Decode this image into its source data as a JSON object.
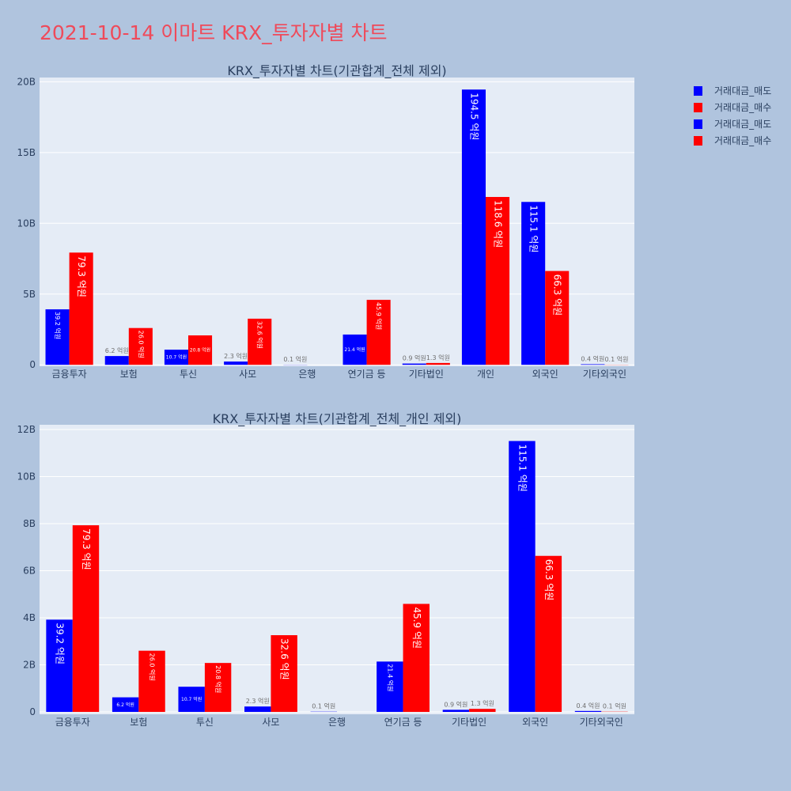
{
  "page_title": "2021-10-14 이마트 KRX_투자자별 차트",
  "colors": {
    "sell": "#0000ff",
    "buy": "#ff0000",
    "plot_bg": "#e5ecf6",
    "page_bg": "#b0c4de"
  },
  "legend": [
    "거래대금_매도",
    "거래대금_매수",
    "거래대금_매도",
    "거래대금_매수"
  ],
  "chart_data": [
    {
      "type": "bar",
      "title": "KRX_투자자별 차트(기관합계_전체 제외)",
      "categories": [
        "금융투자",
        "보험",
        "투신",
        "사모",
        "은행",
        "연기금 등",
        "기타법인",
        "개인",
        "외국인",
        "기타외국인"
      ],
      "series": [
        {
          "name": "거래대금_매도",
          "values": [
            3.92,
            0.62,
            1.07,
            0.23,
            0.01,
            2.14,
            0.09,
            19.45,
            11.51,
            0.04
          ],
          "labels": [
            "39.2 억원",
            "6.2 억원",
            "10.7 억원",
            "2.3 억원",
            "0.1 억원",
            "21.4 억원",
            "0.9 억원",
            "194.5 억원",
            "115.1 억원",
            "0.4 억원"
          ]
        },
        {
          "name": "거래대금_매수",
          "values": [
            7.93,
            2.6,
            2.08,
            3.26,
            0.0,
            4.59,
            0.13,
            11.86,
            6.63,
            0.01
          ],
          "labels": [
            "79.3 억원",
            "26.0 억원",
            "20.8 억원",
            "32.6 억원",
            "",
            "45.9 억원",
            "1.3 억원",
            "118.6 억원",
            "66.3 억원",
            "0.1 억원"
          ]
        }
      ],
      "yticks": [
        0,
        5,
        10,
        15,
        20
      ],
      "ytick_labels": [
        "0",
        "5B",
        "10B",
        "15B",
        "20B"
      ],
      "ylim": [
        -0.1,
        20.3
      ],
      "grid": true,
      "legend_position": "right"
    },
    {
      "type": "bar",
      "title": "KRX_투자자별 차트(기관합계_전체_개인 제외)",
      "categories": [
        "금융투자",
        "보험",
        "투신",
        "사모",
        "은행",
        "연기금 등",
        "기타법인",
        "외국인",
        "기타외국인"
      ],
      "series": [
        {
          "name": "거래대금_매도",
          "values": [
            3.92,
            0.62,
            1.07,
            0.23,
            0.01,
            2.14,
            0.09,
            11.51,
            0.04
          ],
          "labels": [
            "39.2 억원",
            "6.2 억원",
            "10.7 억원",
            "2.3 억원",
            "0.1 억원",
            "21.4 억원",
            "0.9 억원",
            "115.1 억원",
            "0.4 억원"
          ]
        },
        {
          "name": "거래대금_매수",
          "values": [
            7.93,
            2.6,
            2.08,
            3.26,
            0.0,
            4.59,
            0.13,
            6.63,
            0.01
          ],
          "labels": [
            "79.3 억원",
            "26.0 억원",
            "20.8 억원",
            "32.6 억원",
            "",
            "45.9 억원",
            "1.3 억원",
            "66.3 억원",
            "0.1 억원"
          ]
        }
      ],
      "yticks": [
        0,
        2,
        4,
        6,
        8,
        10,
        12
      ],
      "ytick_labels": [
        "0",
        "2B",
        "4B",
        "6B",
        "8B",
        "10B",
        "12B"
      ],
      "ylim": [
        -0.1,
        12.2
      ],
      "grid": true,
      "legend_position": "right"
    }
  ]
}
